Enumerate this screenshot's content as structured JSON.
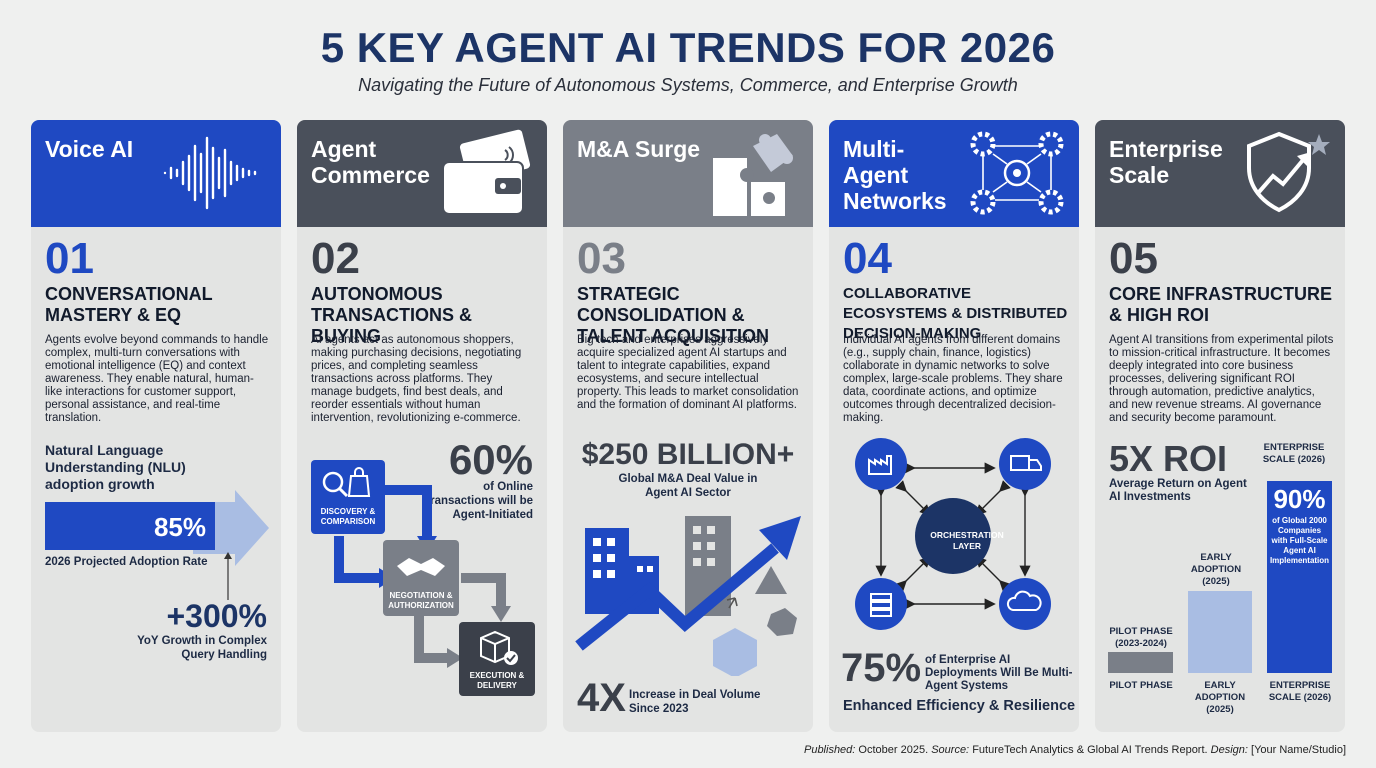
{
  "header": {
    "title": "5 KEY AGENT AI TRENDS FOR 2026",
    "subtitle": "Navigating the Future of Autonomous Systems, Commerce, and Enterprise Growth"
  },
  "colors": {
    "blue": "#1f49c2",
    "dark_gray": "#4a505b",
    "mid_gray": "#7a7f88",
    "light_blue": "#a9bde3",
    "navy": "#1c3466",
    "background": "#eff0ef",
    "card": "#e3e4e3"
  },
  "cards": [
    {
      "head": "Voice AI",
      "icon": "sound-wave-icon",
      "number": "01",
      "subtitle": "CONVERSATIONAL MASTERY & EQ",
      "description": "Agents evolve beyond commands to handle complex, multi-turn conversations with emotional intelligence (EQ) and context awareness. They enable natural, human-like interactions for customer support, personal assistance, and real-time translation.",
      "metric_label": "Natural Language Understanding (NLU) adoption growth",
      "bar_value": "85%",
      "bar_fraction": 0.85,
      "bar_caption": "2026 Projected Adoption Rate",
      "growth_value": "+300%",
      "growth_caption": "YoY Growth in Complex Query Handling"
    },
    {
      "head": "Agent Commerce",
      "icon": "wallet-card-icon",
      "number": "02",
      "subtitle": "AUTONOMOUS TRANSACTIONS & BUYING",
      "description": "AI agents act as autonomous shoppers, making purchasing decisions, negotiating prices, and completing seamless transactions across platforms. They manage budgets, find best deals, and reorder essentials without human intervention, revolutionizing e-commerce.",
      "stat_value": "60%",
      "stat_caption": "of Online Transactions will be Agent-Initiated",
      "steps": [
        "DISCOVERY & COMPARISON",
        "NEGOTIATION & AUTHORIZATION",
        "EXECUTION & DELIVERY"
      ]
    },
    {
      "head": "M&A Surge",
      "icon": "puzzle-icon",
      "number": "03",
      "subtitle": "STRATEGIC CONSOLIDATION & TALENT ACQUISITION",
      "description": "Big tech and enterprises aggressively acquire specialized agent AI startups and talent to integrate capabilities, expand ecosystems, and secure intellectual property. This leads to market consolidation and the formation of dominant AI platforms.",
      "stat_value": "$250 BILLION+",
      "stat_caption": "Global M&A Deal Value in Agent AI Sector",
      "volume_value": "4X",
      "volume_caption": "Increase in Deal Volume Since 2023"
    },
    {
      "head": "Multi-Agent Networks",
      "icon": "gear-network-icon",
      "number": "04",
      "subtitle": "COLLABORATIVE ECOSYSTEMS & DISTRIBUTED DECISION-MAKING",
      "description": "Individual AI agents from different domains (e.g., supply chain, finance, logistics) collaborate in dynamic networks to solve complex, large-scale problems. They share data, coordinate actions, and optimize outcomes through decentralized decision-making.",
      "hub_label": "ORCHESTRATION LAYER",
      "stat_value": "75%",
      "stat_caption": "of Enterprise AI Deployments Will Be Multi-Agent Systems",
      "footer_text": "Enhanced Efficiency & Resilience"
    },
    {
      "head": "Enterprise Scale",
      "icon": "shield-growth-icon",
      "number": "05",
      "subtitle": "CORE INFRASTRUCTURE & HIGH ROI",
      "description": "Agent AI transitions from experimental pilots to mission-critical infrastructure. It becomes deeply integrated into core business processes, delivering significant ROI through automation, predictive analytics, and new revenue streams. AI governance and security become paramount.",
      "roi_value": "5X ROI",
      "roi_caption": "Average Return on Agent AI Investments",
      "bar_top_labels": [
        "PILOT PHASE (2023-2024)",
        "EARLY ADOPTION (2025)",
        "ENTERPRISE SCALE (2026)"
      ],
      "bar_bottom_labels": [
        "PILOT PHASE",
        "EARLY ADOPTION (2025)",
        "ENTERPRISE SCALE (2026)"
      ],
      "enterprise_value": "90%",
      "enterprise_caption": "of Global 2000 Companies with Full-Scale Agent AI Implementation"
    }
  ],
  "footer": {
    "published_label": "Published:",
    "published": "October 2025.",
    "source_label": "Source:",
    "source": "FutureTech Analytics & Global AI Trends Report.",
    "design_label": "Design:",
    "design": "[Your Name/Studio]"
  }
}
